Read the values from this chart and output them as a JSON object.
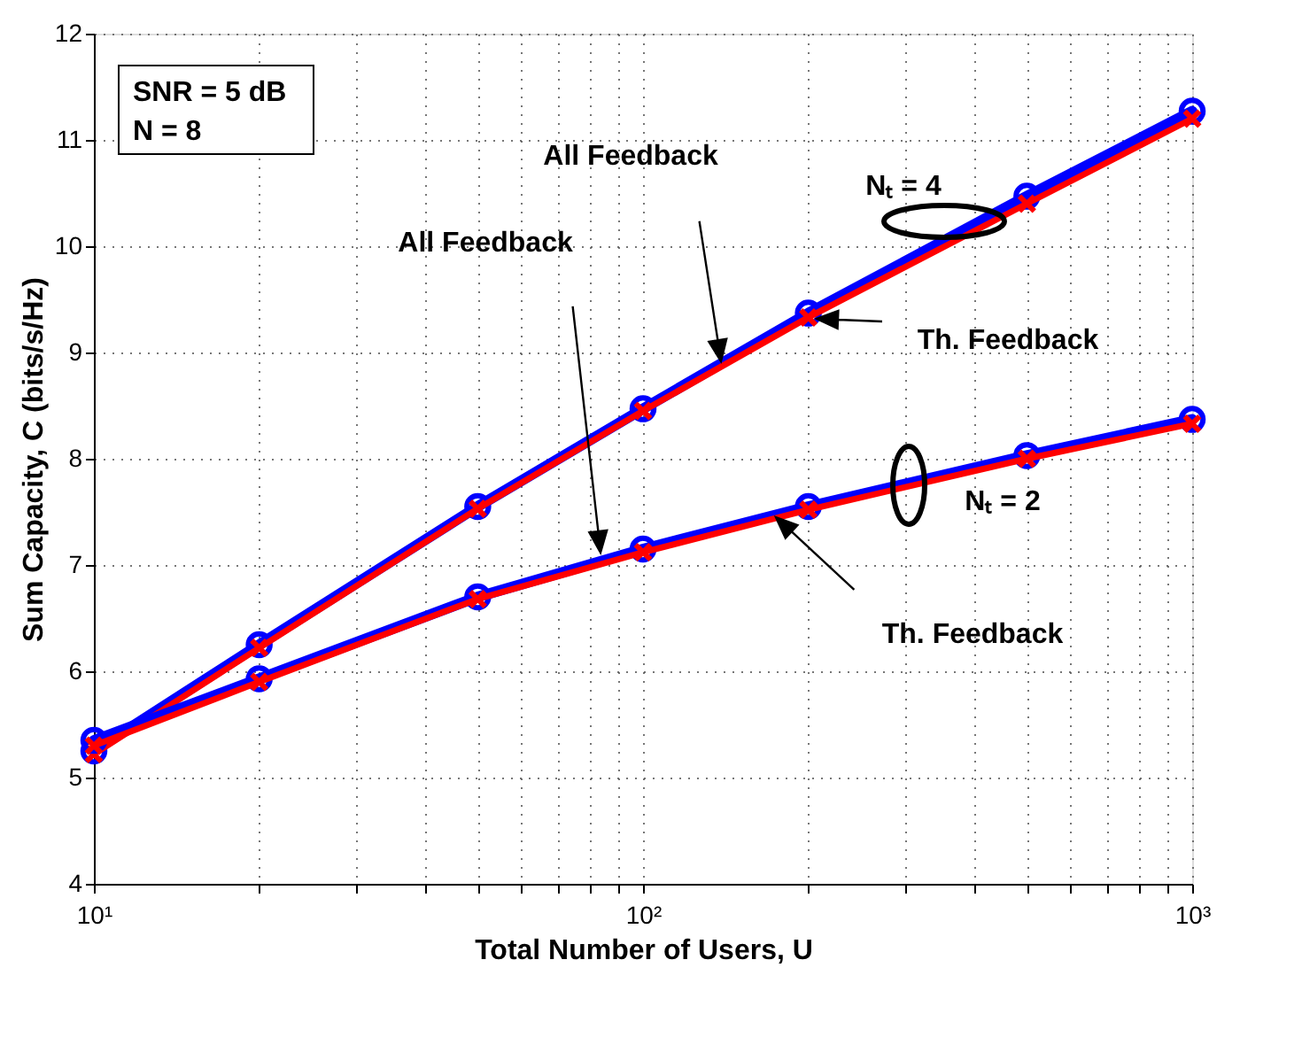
{
  "chart_data": {
    "type": "line",
    "xlabel": "Total Number of Users, U",
    "ylabel": "Sum Capacity, C (bits/s/Hz)",
    "x": [
      10,
      20,
      50,
      100,
      200,
      500,
      1000
    ],
    "series": [
      {
        "color": "#0000ff",
        "marker": "circle",
        "values": [
          5.25,
          6.25,
          7.55,
          8.47,
          9.37,
          10.47,
          11.27
        ]
      },
      {
        "color": "#ff0000",
        "marker": "cross",
        "values": [
          5.22,
          6.22,
          7.53,
          8.45,
          9.33,
          10.4,
          11.2
        ]
      },
      {
        "color": "#0000ff",
        "marker": "circle",
        "values": [
          5.35,
          5.93,
          6.7,
          7.15,
          7.55,
          8.03,
          8.37
        ]
      },
      {
        "color": "#ff0000",
        "marker": "cross",
        "values": [
          5.3,
          5.9,
          6.68,
          7.12,
          7.52,
          8.0,
          8.33
        ]
      }
    ],
    "log": "x",
    "xlim": [
      10,
      1000
    ],
    "ylim": [
      4,
      12
    ],
    "xticks": [
      {
        "value": 10,
        "label": "10¹"
      },
      {
        "value": 20,
        "label": null
      },
      {
        "value": 30,
        "label": null
      },
      {
        "value": 40,
        "label": null
      },
      {
        "value": 50,
        "label": null
      },
      {
        "value": 60,
        "label": null
      },
      {
        "value": 70,
        "label": null
      },
      {
        "value": 80,
        "label": null
      },
      {
        "value": 90,
        "label": null
      },
      {
        "value": 100,
        "label": "10²"
      },
      {
        "value": 200,
        "label": null
      },
      {
        "value": 300,
        "label": null
      },
      {
        "value": 400,
        "label": null
      },
      {
        "value": 500,
        "label": null
      },
      {
        "value": 600,
        "label": null
      },
      {
        "value": 700,
        "label": null
      },
      {
        "value": 800,
        "label": null
      },
      {
        "value": 900,
        "label": null
      },
      {
        "value": 1000,
        "label": "10³"
      }
    ],
    "yticks": [
      4,
      5,
      6,
      7,
      8,
      9,
      10,
      11,
      12
    ],
    "grid": true,
    "line_style": "solid",
    "annotations": [
      "All Feedback",
      "Th. Feedback",
      "All Feedback",
      "Th. Feedback",
      "Nₜ = 4",
      "Nₜ = 2",
      "SNR = 5 dB",
      "N = 8"
    ]
  }
}
